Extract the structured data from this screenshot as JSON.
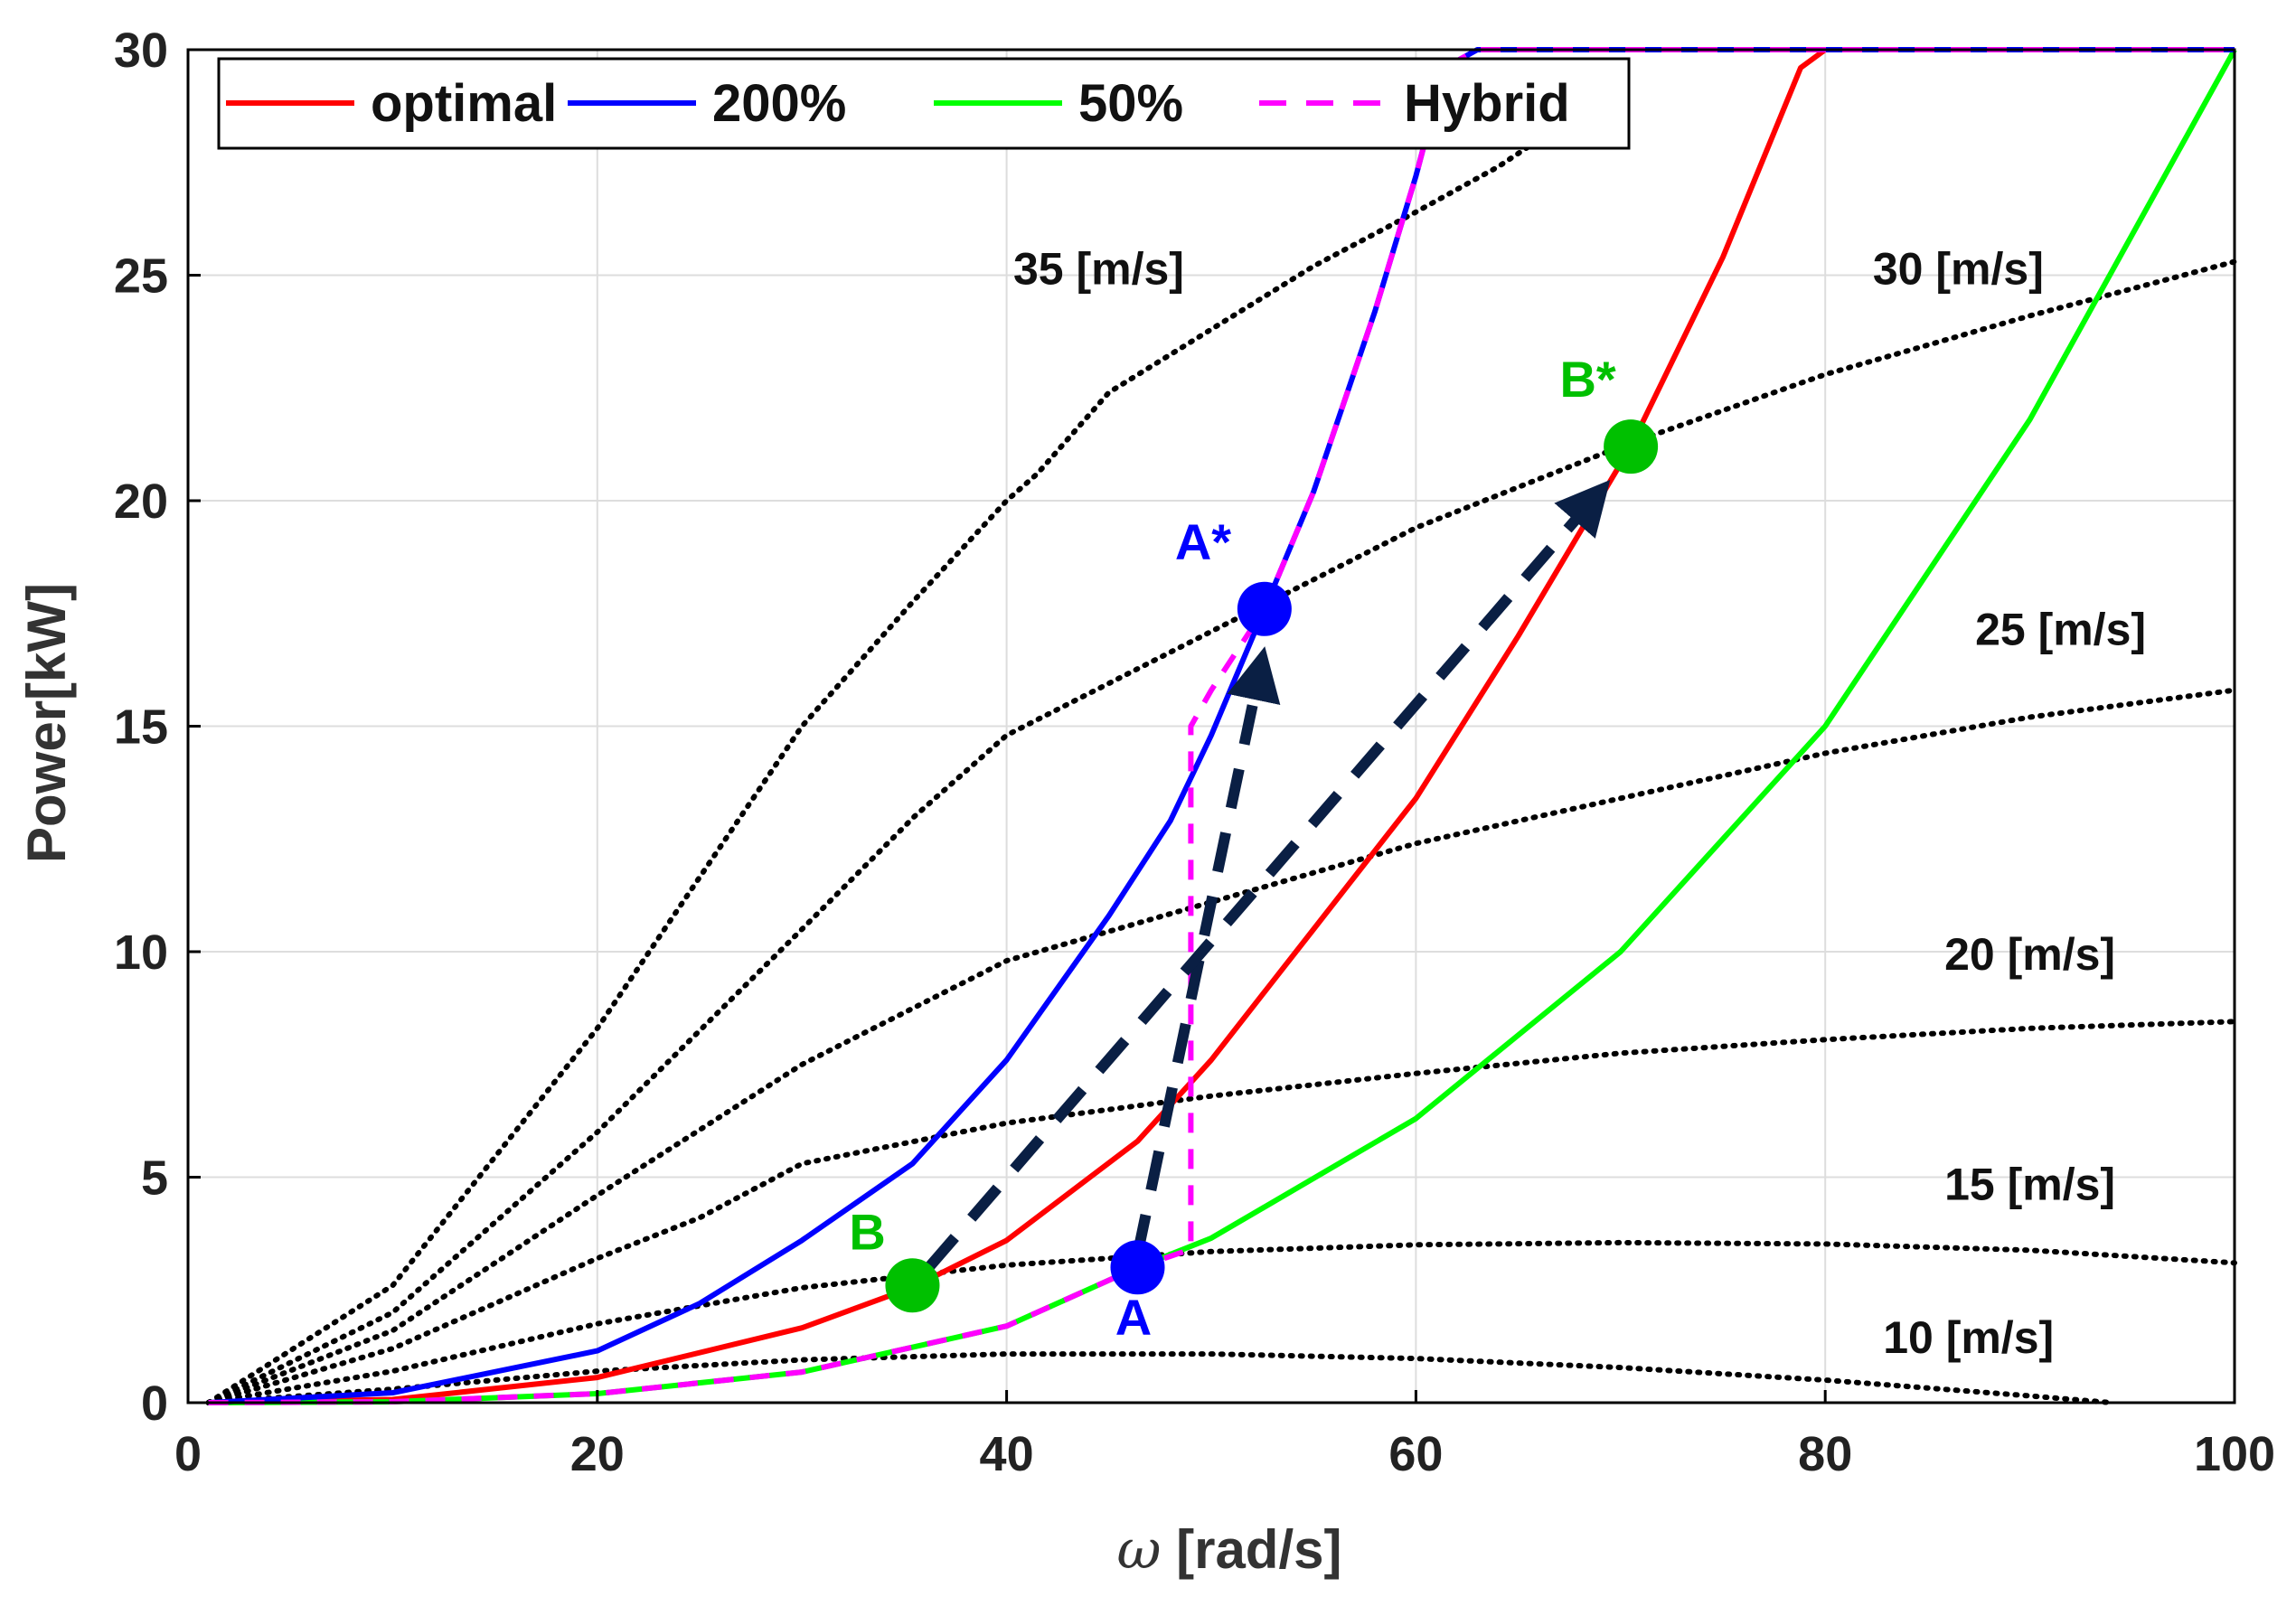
{
  "chart_data": {
    "type": "line",
    "title": "",
    "xlabel_symbol": "ω",
    "xlabel_rest": " [rad/s]",
    "ylabel": "Power[kW]",
    "xlim": [
      0,
      100
    ],
    "ylim": [
      0,
      30
    ],
    "xticks": [
      0,
      20,
      40,
      60,
      80,
      100
    ],
    "yticks": [
      0,
      5,
      10,
      15,
      20,
      25,
      30
    ],
    "xtick_labels": [
      "0",
      "20",
      "40",
      "60",
      "80",
      "100"
    ],
    "ytick_labels": [
      "0",
      "5",
      "10",
      "15",
      "20",
      "25",
      "30"
    ],
    "grid": true,
    "legend_position": "top-left",
    "legend": [
      {
        "name": "optimal",
        "color": "#ff0000",
        "style": "solid"
      },
      {
        "name": "200%",
        "color": "#0000ff",
        "style": "solid"
      },
      {
        "name": "50%",
        "color": "#00ff00",
        "style": "solid"
      },
      {
        "name": "Hybrid",
        "color": "#ff00ff",
        "style": "dashed"
      }
    ],
    "series": [
      {
        "name": "optimal",
        "color": "#ff0000",
        "x": [
          1,
          10,
          20,
          30,
          35.4,
          40,
          46.4,
          50,
          55,
          60,
          65,
          70.5,
          75,
          78.8,
          80,
          100
        ],
        "y": [
          0,
          0.07,
          0.56,
          1.66,
          2.56,
          3.6,
          5.8,
          7.6,
          10.5,
          13.4,
          17,
          21.2,
          25.4,
          29.6,
          30,
          30
        ]
      },
      {
        "name": "200%",
        "color": "#0000ff",
        "x": [
          1,
          10,
          20,
          25,
          30,
          35.4,
          40,
          45,
          48,
          50,
          52.6,
          55,
          58,
          60,
          61.4,
          63,
          100
        ],
        "y": [
          0,
          0.22,
          1.15,
          2.2,
          3.6,
          5.3,
          7.6,
          10.8,
          12.9,
          14.8,
          17.6,
          20.2,
          24.2,
          27.2,
          29.6,
          30,
          30
        ]
      },
      {
        "name": "50%",
        "color": "#00ff00",
        "x": [
          1,
          10,
          20,
          30,
          40,
          46.4,
          50,
          60,
          70,
          80,
          90,
          100
        ],
        "y": [
          0,
          0.02,
          0.2,
          0.68,
          1.7,
          3,
          3.65,
          6.3,
          10,
          15,
          21.8,
          30
        ]
      },
      {
        "name": "Hybrid",
        "color": "#ff00ff",
        "x": [
          1,
          10,
          20,
          30,
          40,
          46.4,
          49,
          49,
          50,
          52.6,
          55,
          58,
          60,
          61.4,
          63,
          100
        ],
        "y": [
          0,
          0.02,
          0.2,
          0.68,
          1.7,
          3,
          3.4,
          15,
          15.8,
          17.6,
          20.2,
          24.2,
          27.2,
          29.6,
          30,
          30
        ]
      }
    ],
    "wind_curves": [
      {
        "label": "10 [m/s]",
        "label_x": 87,
        "label_y": 1.1,
        "x": [
          1,
          10,
          20,
          30,
          40,
          50,
          60,
          70,
          80,
          90,
          94
        ],
        "y": [
          0,
          0.3,
          0.7,
          0.95,
          1.08,
          1.08,
          0.98,
          0.78,
          0.5,
          0.15,
          0
        ]
      },
      {
        "label": "15 [m/s]",
        "label_x": 90,
        "label_y": 4.5,
        "x": [
          1,
          10,
          20,
          30,
          40,
          50,
          60,
          70,
          80,
          90,
          100
        ],
        "y": [
          0,
          0.7,
          1.75,
          2.55,
          3.05,
          3.35,
          3.5,
          3.55,
          3.52,
          3.38,
          3.1
        ]
      },
      {
        "label": "20 [m/s]",
        "label_x": 90,
        "label_y": 9.6,
        "x": [
          1,
          10,
          20,
          25,
          30,
          40,
          50,
          60,
          70,
          80,
          90,
          100
        ],
        "y": [
          0,
          1.2,
          3.2,
          4.1,
          5.3,
          6.2,
          6.8,
          7.3,
          7.75,
          8.05,
          8.3,
          8.45
        ]
      },
      {
        "label": "25 [m/s]",
        "label_x": 91.5,
        "label_y": 16.8,
        "x": [
          1,
          10,
          20,
          30,
          40,
          50,
          60,
          70,
          80,
          90,
          100
        ],
        "y": [
          0,
          1.6,
          4.6,
          7.5,
          9.8,
          11.1,
          12.4,
          13.4,
          14.4,
          15.2,
          15.8
        ]
      },
      {
        "label": "30 [m/s]",
        "label_x": 86.5,
        "label_y": 24.8,
        "x": [
          1,
          10,
          20,
          30,
          35.5,
          40,
          50,
          60,
          70,
          80,
          90,
          100
        ],
        "y": [
          0,
          2,
          6,
          10.5,
          13,
          14.8,
          17.1,
          19.4,
          21.2,
          22.8,
          24.1,
          25.3
        ]
      },
      {
        "label": "35 [m/s]",
        "label_x": 44.5,
        "label_y": 24.8,
        "x": [
          1,
          10,
          20,
          30,
          35.5,
          40,
          41.5,
          45,
          50,
          55,
          60,
          64,
          68,
          70
        ],
        "y": [
          0,
          2.6,
          8.3,
          15,
          17.8,
          20,
          20.6,
          22.4,
          23.8,
          25.2,
          26.4,
          27.4,
          28.6,
          29.6
        ]
      }
    ],
    "points": [
      {
        "label": "A",
        "x": 46.4,
        "y": 3,
        "color": "#0000ff",
        "label_dx": -0.2,
        "label_dy": -1.5
      },
      {
        "label": "A*",
        "x": 52.6,
        "y": 17.6,
        "color": "#0000ff",
        "label_dx": -3,
        "label_dy": 1.1
      },
      {
        "label": "B",
        "x": 35.4,
        "y": 2.6,
        "color": "#00c000",
        "label_dx": -2.2,
        "label_dy": 0.8
      },
      {
        "label": "B*",
        "x": 70.5,
        "y": 21.2,
        "color": "#00c000",
        "label_dx": -2.1,
        "label_dy": 1.1
      }
    ],
    "arrows": [
      {
        "from": "A",
        "to": "A*",
        "x1": 46.4,
        "y1": 3.3,
        "x2": 52.4,
        "y2": 16.3,
        "color": "#0a1f44"
      },
      {
        "from": "B",
        "to": "B*",
        "x1": 36.2,
        "y1": 3.0,
        "x2": 68.8,
        "y2": 20.1,
        "color": "#0a1f44"
      }
    ]
  }
}
